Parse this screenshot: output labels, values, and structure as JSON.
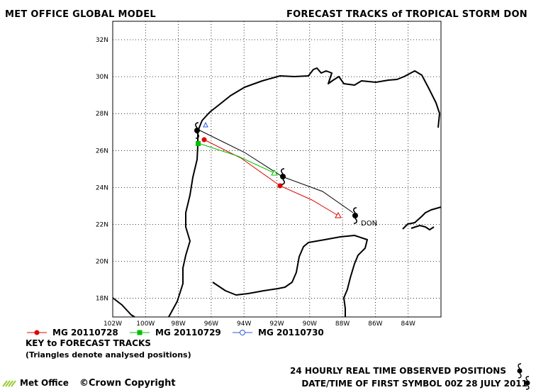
{
  "header": {
    "left_title": "MET OFFICE GLOBAL MODEL",
    "right_title": "FORECAST TRACKS of TROPICAL STORM DON"
  },
  "map": {
    "lat_labels": [
      "32N",
      "30N",
      "28N",
      "26N",
      "24N",
      "22N",
      "20N",
      "18N"
    ],
    "lon_labels": [
      "102W",
      "100W",
      "98W",
      "96W",
      "94W",
      "92W",
      "90W",
      "88W",
      "86W",
      "84W"
    ],
    "storm_label": "DON",
    "grid": true
  },
  "tracks": [
    {
      "name": "MG 20110728",
      "color": "#e00000",
      "marker": "filled-circle"
    },
    {
      "name": "MG 20110729",
      "color": "#00c000",
      "marker": "filled-square"
    },
    {
      "name": "MG 20110730",
      "color": "#2a5ce0",
      "marker": "open-circle"
    }
  ],
  "key": {
    "title": "KEY to FORECAST TRACKS",
    "note": "(Triangles denote analysed positions)"
  },
  "footer": {
    "observed": "24 HOURLY REAL TIME OBSERVED POSITIONS",
    "datetime": "DATE/TIME OF FIRST SYMBOL 00Z 28 JULY 2011",
    "copyright": "Crown Copyright",
    "logo_text": "Met Office"
  }
}
